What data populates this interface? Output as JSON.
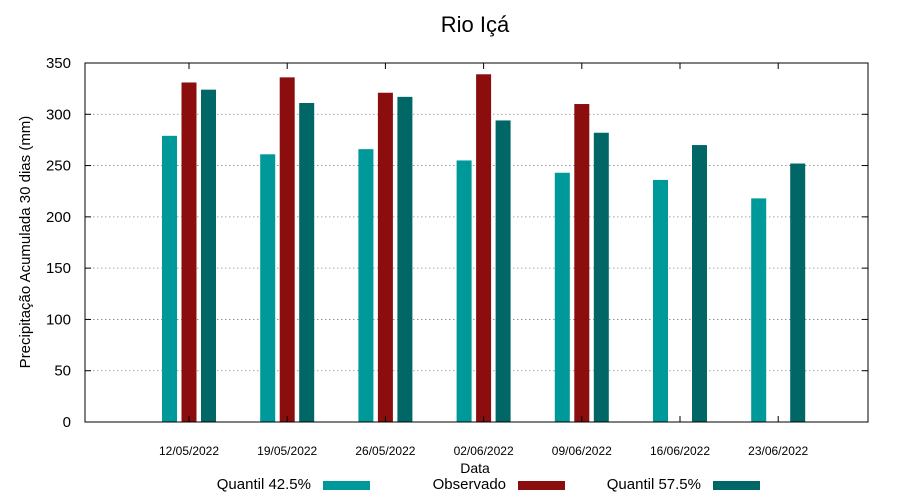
{
  "chart_data": {
    "type": "bar",
    "title": "Rio Içá",
    "xlabel": "Data",
    "ylabel": "Precipitação Acumulada 30 dias (mm)",
    "ylim": [
      0,
      350
    ],
    "yticks": [
      0,
      50,
      100,
      150,
      200,
      250,
      300,
      350
    ],
    "grid": true,
    "legend_position": "bottom",
    "categories": [
      "12/05/2022",
      "19/05/2022",
      "26/05/2022",
      "02/06/2022",
      "09/06/2022",
      "16/06/2022",
      "23/06/2022"
    ],
    "series": [
      {
        "name": "Quantil 42.5%",
        "color": "#009999",
        "values": [
          279,
          261,
          266,
          255,
          243,
          236,
          218
        ]
      },
      {
        "name": "Observado",
        "color": "#8b0d0d",
        "values": [
          331,
          336,
          321,
          339,
          310,
          null,
          null
        ]
      },
      {
        "name": "Quantil 57.5%",
        "color": "#006666",
        "values": [
          324,
          311,
          317,
          294,
          282,
          270,
          252
        ]
      }
    ]
  }
}
